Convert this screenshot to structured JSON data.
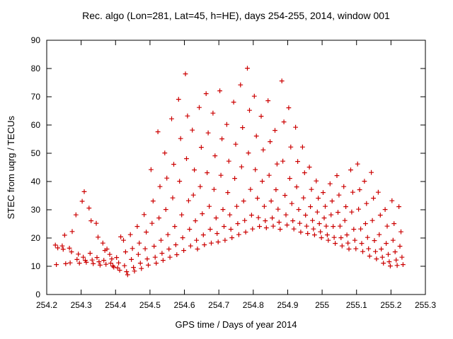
{
  "chart_data": {
    "type": "scatter",
    "title": "Rec. algo (Lon=281, Lat=45, h=HE), days 254-255, 2014, window 001",
    "xlabel": "GPS time / Days of year 2014",
    "ylabel": "STEC from uqrg / TECUs",
    "xlim": [
      254.2,
      255.3
    ],
    "ylim": [
      0,
      90
    ],
    "xticks": [
      254.2,
      254.3,
      254.4,
      254.5,
      254.6,
      254.7,
      254.8,
      254.9,
      255,
      255.1,
      255.2,
      255.3
    ],
    "xtick_labels": [
      "254.2",
      "254.3",
      "254.4",
      "254.5",
      "254.6",
      "254.7",
      "254.8",
      "254.9",
      "255",
      "255.1",
      "255.2",
      "255.3"
    ],
    "yticks": [
      0,
      10,
      20,
      30,
      40,
      50,
      60,
      70,
      80,
      90
    ],
    "ytick_labels": [
      "0",
      "10",
      "20",
      "30",
      "40",
      "50",
      "60",
      "70",
      "80",
      "90"
    ],
    "grid": false,
    "legend": "none",
    "marker": "plus",
    "marker_color": "#cc0000",
    "axis_color": "#000000",
    "points": [
      [
        254.225,
        17.5
      ],
      [
        254.232,
        16.5
      ],
      [
        254.228,
        10.6
      ],
      [
        254.245,
        17.2
      ],
      [
        254.252,
        21.0
      ],
      [
        254.248,
        16.0
      ],
      [
        254.255,
        10.9
      ],
      [
        254.266,
        16.4
      ],
      [
        254.272,
        15.1
      ],
      [
        254.268,
        11.2
      ],
      [
        254.274,
        22.3
      ],
      [
        254.285,
        28.2
      ],
      [
        254.292,
        14.3
      ],
      [
        254.288,
        12.4
      ],
      [
        254.295,
        11.1
      ],
      [
        254.303,
        33.0
      ],
      [
        254.309,
        36.4
      ],
      [
        254.306,
        13.2
      ],
      [
        254.312,
        12.1
      ],
      [
        254.315,
        11.4
      ],
      [
        254.323,
        30.6
      ],
      [
        254.329,
        26.1
      ],
      [
        254.326,
        14.6
      ],
      [
        254.332,
        12.2
      ],
      [
        254.335,
        10.9
      ],
      [
        254.344,
        25.2
      ],
      [
        254.349,
        20.3
      ],
      [
        254.346,
        13.1
      ],
      [
        254.352,
        11.6
      ],
      [
        254.355,
        10.4
      ],
      [
        254.363,
        18.2
      ],
      [
        254.369,
        15.6
      ],
      [
        254.366,
        12.1
      ],
      [
        254.372,
        10.7
      ],
      [
        254.375,
        16.1
      ],
      [
        254.383,
        14.2
      ],
      [
        254.389,
        12.6
      ],
      [
        254.386,
        11.1
      ],
      [
        254.392,
        10.1
      ],
      [
        254.395,
        9.7
      ],
      [
        254.403,
        13.1
      ],
      [
        254.409,
        11.2
      ],
      [
        254.406,
        9.4
      ],
      [
        254.412,
        8.6
      ],
      [
        254.415,
        20.4
      ],
      [
        254.423,
        19.2
      ],
      [
        254.429,
        15.1
      ],
      [
        254.426,
        10.2
      ],
      [
        254.432,
        8.1
      ],
      [
        254.435,
        7.0
      ],
      [
        254.443,
        21.2
      ],
      [
        254.449,
        16.3
      ],
      [
        254.446,
        12.4
      ],
      [
        254.452,
        9.6
      ],
      [
        254.455,
        8.3
      ],
      [
        254.463,
        24.1
      ],
      [
        254.469,
        18.2
      ],
      [
        254.466,
        14.2
      ],
      [
        254.472,
        11.1
      ],
      [
        254.475,
        9.2
      ],
      [
        254.483,
        28.3
      ],
      [
        254.489,
        22.1
      ],
      [
        254.486,
        16.2
      ],
      [
        254.492,
        12.6
      ],
      [
        254.495,
        10.4
      ],
      [
        254.503,
        44.2
      ],
      [
        254.509,
        33.1
      ],
      [
        254.506,
        25.2
      ],
      [
        254.512,
        17.1
      ],
      [
        254.515,
        13.2
      ],
      [
        254.518,
        11.1
      ],
      [
        254.523,
        57.6
      ],
      [
        254.529,
        38.2
      ],
      [
        254.526,
        27.1
      ],
      [
        254.532,
        19.2
      ],
      [
        254.535,
        14.6
      ],
      [
        254.538,
        12.1
      ],
      [
        254.543,
        50.1
      ],
      [
        254.549,
        41.2
      ],
      [
        254.546,
        30.1
      ],
      [
        254.552,
        21.2
      ],
      [
        254.555,
        16.1
      ],
      [
        254.558,
        13.2
      ],
      [
        254.563,
        62.2
      ],
      [
        254.569,
        46.1
      ],
      [
        254.566,
        34.2
      ],
      [
        254.572,
        24.1
      ],
      [
        254.575,
        17.6
      ],
      [
        254.578,
        14.1
      ],
      [
        254.583,
        69.1
      ],
      [
        254.589,
        55.2
      ],
      [
        254.586,
        40.1
      ],
      [
        254.592,
        28.2
      ],
      [
        254.595,
        20.1
      ],
      [
        254.598,
        15.6
      ],
      [
        254.603,
        78.1
      ],
      [
        254.609,
        63.2
      ],
      [
        254.606,
        48.1
      ],
      [
        254.612,
        33.2
      ],
      [
        254.615,
        23.1
      ],
      [
        254.618,
        17.2
      ],
      [
        254.623,
        58.2
      ],
      [
        254.629,
        44.1
      ],
      [
        254.626,
        35.2
      ],
      [
        254.632,
        26.1
      ],
      [
        254.635,
        19.2
      ],
      [
        254.638,
        16.1
      ],
      [
        254.643,
        66.2
      ],
      [
        254.649,
        52.1
      ],
      [
        254.646,
        38.2
      ],
      [
        254.652,
        28.6
      ],
      [
        254.655,
        21.1
      ],
      [
        254.658,
        17.6
      ],
      [
        254.663,
        71.1
      ],
      [
        254.669,
        57.2
      ],
      [
        254.666,
        43.1
      ],
      [
        254.672,
        31.2
      ],
      [
        254.675,
        23.1
      ],
      [
        254.678,
        18.2
      ],
      [
        254.683,
        64.2
      ],
      [
        254.689,
        49.1
      ],
      [
        254.686,
        37.2
      ],
      [
        254.692,
        27.1
      ],
      [
        254.695,
        21.6
      ],
      [
        254.698,
        18.6
      ],
      [
        254.703,
        72.1
      ],
      [
        254.709,
        55.1
      ],
      [
        254.706,
        42.2
      ],
      [
        254.712,
        30.1
      ],
      [
        254.715,
        24.1
      ],
      [
        254.718,
        19.2
      ],
      [
        254.723,
        60.2
      ],
      [
        254.729,
        47.2
      ],
      [
        254.726,
        36.1
      ],
      [
        254.732,
        28.2
      ],
      [
        254.735,
        23.1
      ],
      [
        254.738,
        20.1
      ],
      [
        254.743,
        68.1
      ],
      [
        254.749,
        53.2
      ],
      [
        254.746,
        41.1
      ],
      [
        254.752,
        31.2
      ],
      [
        254.755,
        25.1
      ],
      [
        254.758,
        21.2
      ],
      [
        254.763,
        74.2
      ],
      [
        254.769,
        59.1
      ],
      [
        254.766,
        45.2
      ],
      [
        254.772,
        33.1
      ],
      [
        254.775,
        26.2
      ],
      [
        254.778,
        22.1
      ],
      [
        254.783,
        80.1
      ],
      [
        254.789,
        65.2
      ],
      [
        254.786,
        50.1
      ],
      [
        254.792,
        37.2
      ],
      [
        254.795,
        28.1
      ],
      [
        254.798,
        23.2
      ],
      [
        254.803,
        70.2
      ],
      [
        254.809,
        56.1
      ],
      [
        254.806,
        44.2
      ],
      [
        254.812,
        34.1
      ],
      [
        254.815,
        27.2
      ],
      [
        254.818,
        24.1
      ],
      [
        254.823,
        63.1
      ],
      [
        254.829,
        51.2
      ],
      [
        254.826,
        40.1
      ],
      [
        254.832,
        31.2
      ],
      [
        254.835,
        26.1
      ],
      [
        254.838,
        23.6
      ],
      [
        254.843,
        68.6
      ],
      [
        254.849,
        54.1
      ],
      [
        254.846,
        42.2
      ],
      [
        254.852,
        33.1
      ],
      [
        254.855,
        27.1
      ],
      [
        254.858,
        24.2
      ],
      [
        254.863,
        58.1
      ],
      [
        254.869,
        46.2
      ],
      [
        254.866,
        37.1
      ],
      [
        254.872,
        30.2
      ],
      [
        254.875,
        25.6
      ],
      [
        254.878,
        23.1
      ],
      [
        254.883,
        75.6
      ],
      [
        254.889,
        61.1
      ],
      [
        254.886,
        47.2
      ],
      [
        254.892,
        35.1
      ],
      [
        254.895,
        28.2
      ],
      [
        254.898,
        24.6
      ],
      [
        254.903,
        66.1
      ],
      [
        254.909,
        52.2
      ],
      [
        254.906,
        41.1
      ],
      [
        254.912,
        32.2
      ],
      [
        254.915,
        26.1
      ],
      [
        254.918,
        23.2
      ],
      [
        254.923,
        59.2
      ],
      [
        254.929,
        47.1
      ],
      [
        254.926,
        38.1
      ],
      [
        254.932,
        30.1
      ],
      [
        254.935,
        25.2
      ],
      [
        254.938,
        22.1
      ],
      [
        254.943,
        52.2
      ],
      [
        254.949,
        43.1
      ],
      [
        254.946,
        34.2
      ],
      [
        254.952,
        28.1
      ],
      [
        254.955,
        24.2
      ],
      [
        254.958,
        21.6
      ],
      [
        254.963,
        45.1
      ],
      [
        254.969,
        37.2
      ],
      [
        254.966,
        31.1
      ],
      [
        254.972,
        26.2
      ],
      [
        254.975,
        23.2
      ],
      [
        254.978,
        21.1
      ],
      [
        254.983,
        40.2
      ],
      [
        254.989,
        34.1
      ],
      [
        254.986,
        29.2
      ],
      [
        254.992,
        25.1
      ],
      [
        254.995,
        22.2
      ],
      [
        254.998,
        20.1
      ],
      [
        255.003,
        36.1
      ],
      [
        255.009,
        31.2
      ],
      [
        255.006,
        27.1
      ],
      [
        255.012,
        24.2
      ],
      [
        255.015,
        21.1
      ],
      [
        255.018,
        19.2
      ],
      [
        255.023,
        39.2
      ],
      [
        255.029,
        33.1
      ],
      [
        255.026,
        28.2
      ],
      [
        255.032,
        24.1
      ],
      [
        255.035,
        20.2
      ],
      [
        255.038,
        18.1
      ],
      [
        255.043,
        42.1
      ],
      [
        255.049,
        35.2
      ],
      [
        255.046,
        29.1
      ],
      [
        255.052,
        24.2
      ],
      [
        255.055,
        20.1
      ],
      [
        255.058,
        17.2
      ],
      [
        255.063,
        38.2
      ],
      [
        255.069,
        31.1
      ],
      [
        255.066,
        26.2
      ],
      [
        255.072,
        21.1
      ],
      [
        255.075,
        18.2
      ],
      [
        255.078,
        16.1
      ],
      [
        255.083,
        44.1
      ],
      [
        255.089,
        36.2
      ],
      [
        255.086,
        29.2
      ],
      [
        255.092,
        23.1
      ],
      [
        255.095,
        19.2
      ],
      [
        255.098,
        16.2
      ],
      [
        255.103,
        46.2
      ],
      [
        255.109,
        37.1
      ],
      [
        255.106,
        30.2
      ],
      [
        255.112,
        23.2
      ],
      [
        255.115,
        18.1
      ],
      [
        255.118,
        15.2
      ],
      [
        255.123,
        40.1
      ],
      [
        255.129,
        32.2
      ],
      [
        255.126,
        25.1
      ],
      [
        255.132,
        20.2
      ],
      [
        255.135,
        16.2
      ],
      [
        255.138,
        13.6
      ],
      [
        255.143,
        43.2
      ],
      [
        255.149,
        34.1
      ],
      [
        255.146,
        26.2
      ],
      [
        255.152,
        19.1
      ],
      [
        255.155,
        15.2
      ],
      [
        255.158,
        12.6
      ],
      [
        255.163,
        36.2
      ],
      [
        255.169,
        28.1
      ],
      [
        255.166,
        21.2
      ],
      [
        255.172,
        16.1
      ],
      [
        255.175,
        13.2
      ],
      [
        255.178,
        11.1
      ],
      [
        255.183,
        30.1
      ],
      [
        255.189,
        24.2
      ],
      [
        255.186,
        18.1
      ],
      [
        255.192,
        14.2
      ],
      [
        255.195,
        11.6
      ],
      [
        255.198,
        10.1
      ],
      [
        255.203,
        33.2
      ],
      [
        255.209,
        25.1
      ],
      [
        255.206,
        19.2
      ],
      [
        255.212,
        15.1
      ],
      [
        255.215,
        12.2
      ],
      [
        255.218,
        10.3
      ],
      [
        255.223,
        31.1
      ],
      [
        255.229,
        22.2
      ],
      [
        255.226,
        17.1
      ],
      [
        255.232,
        13.2
      ],
      [
        255.235,
        10.6
      ]
    ]
  }
}
